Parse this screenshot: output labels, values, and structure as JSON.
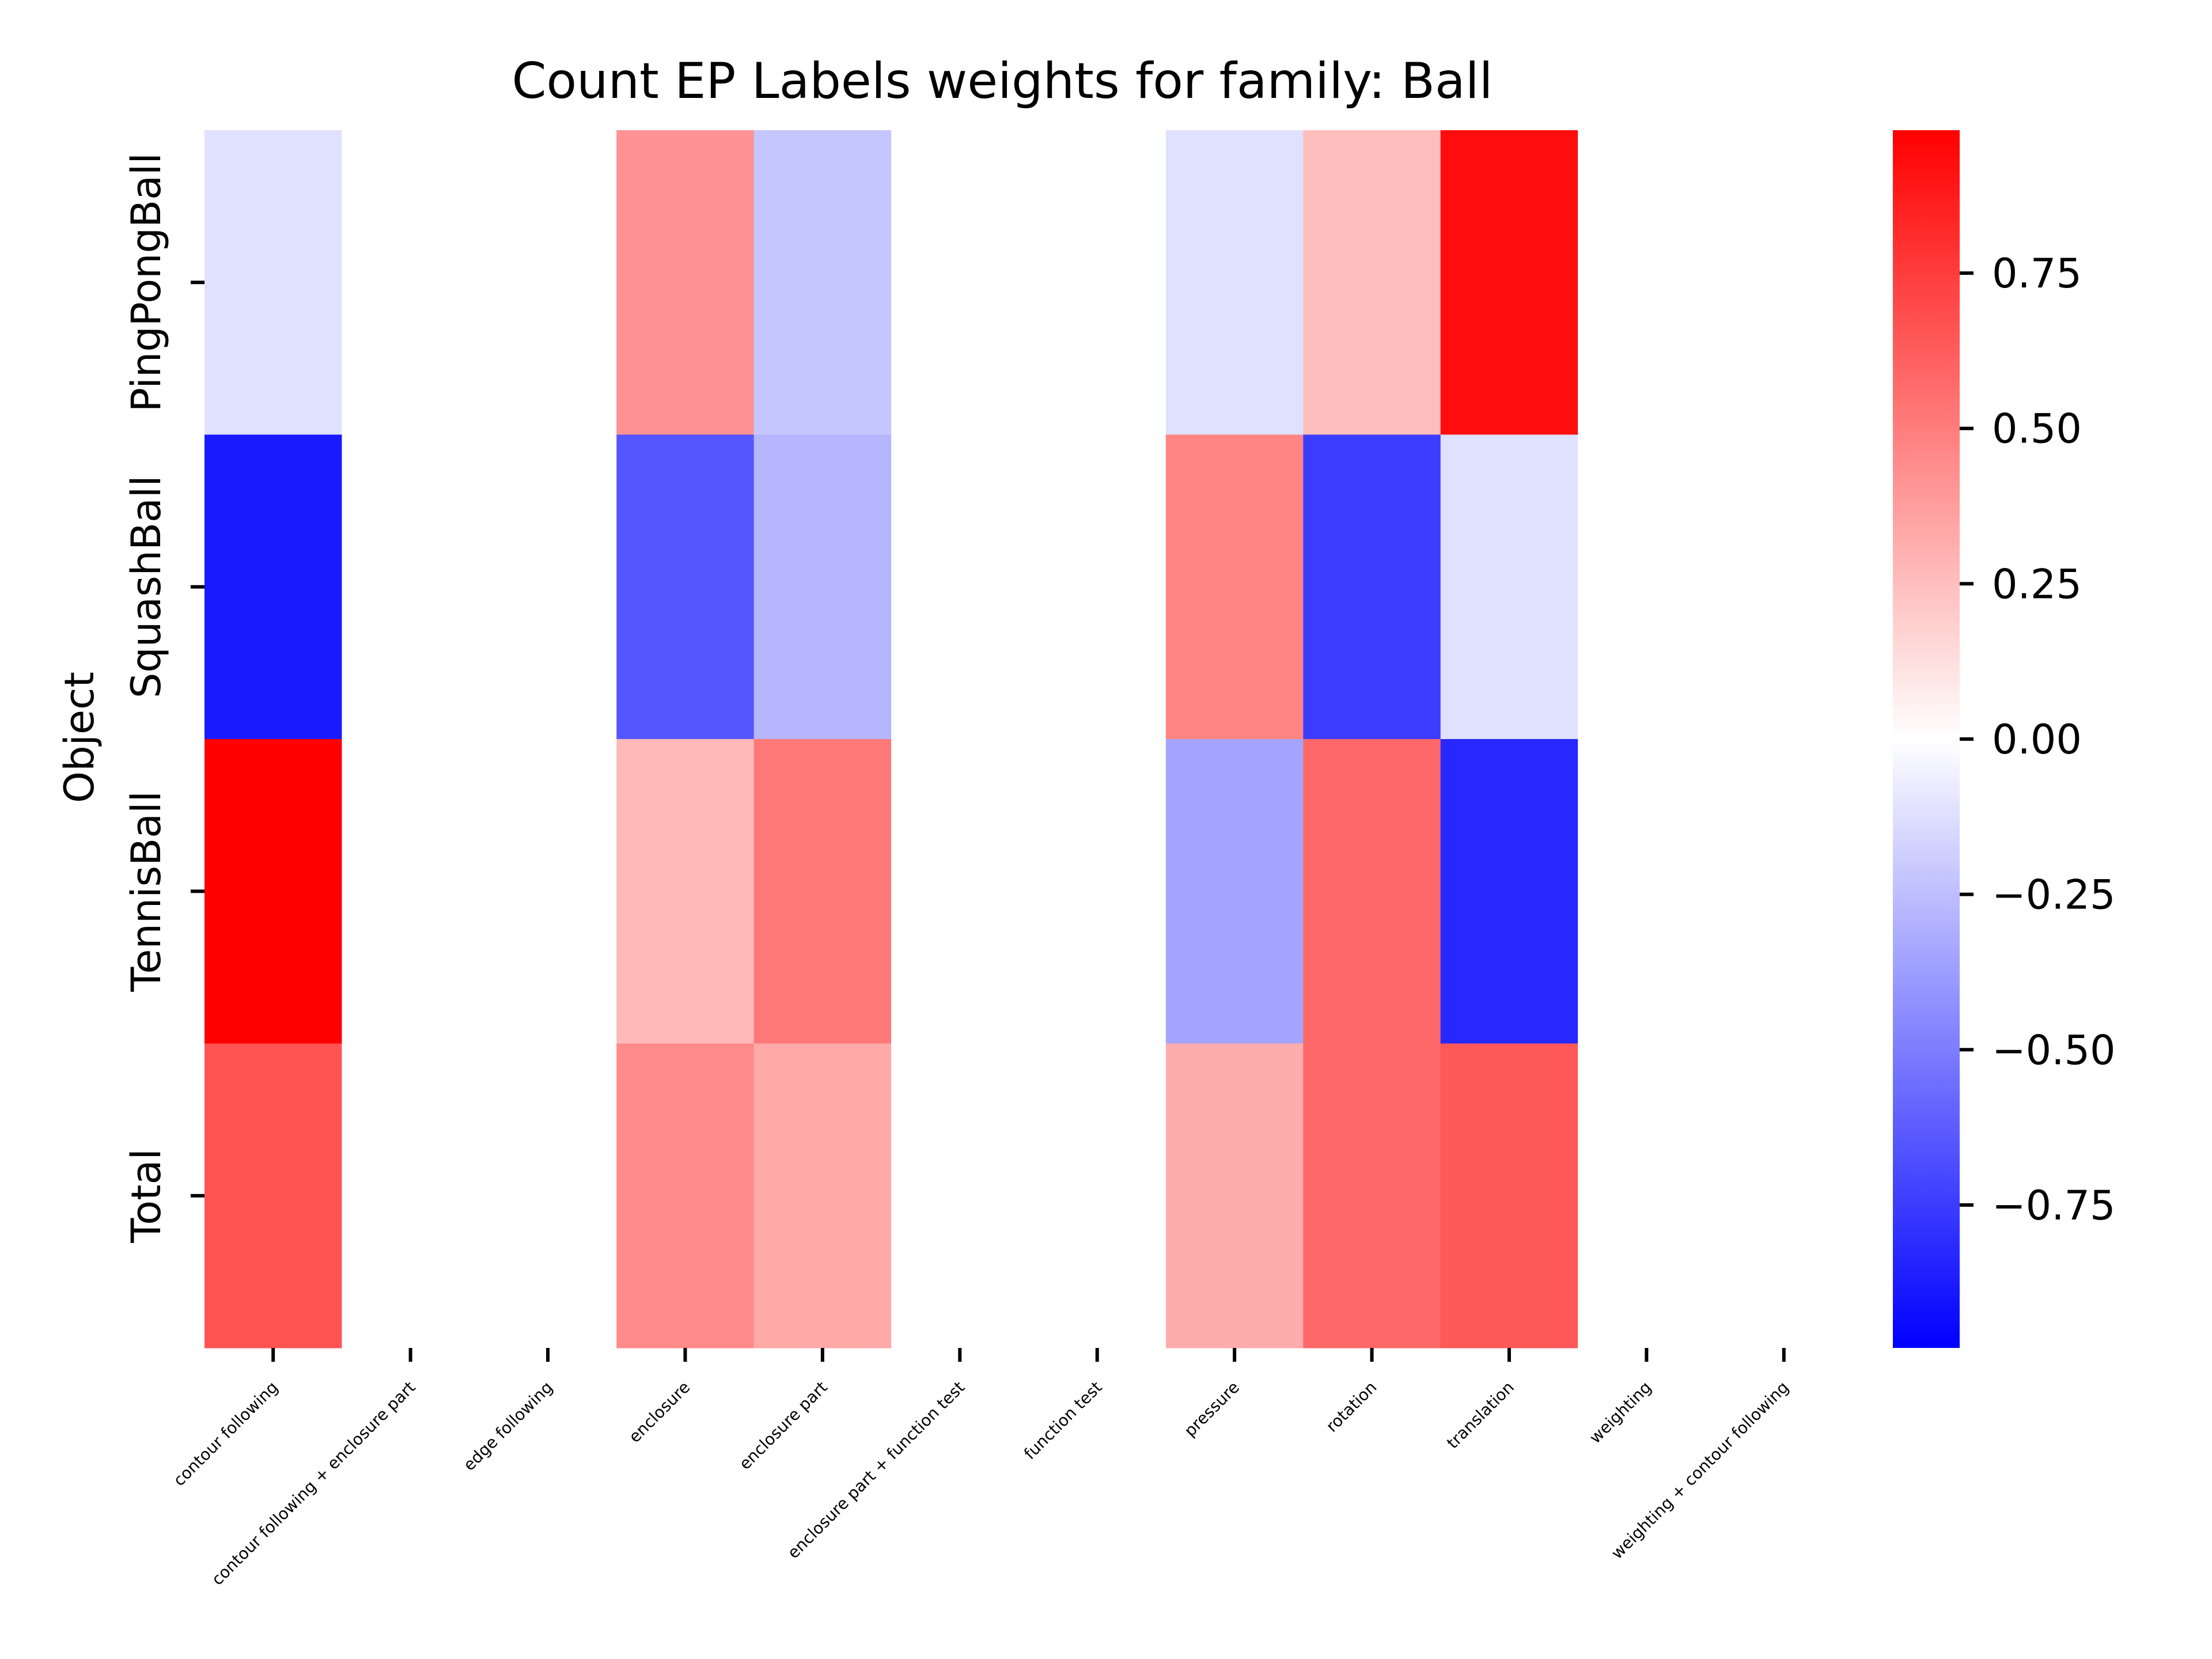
{
  "chart_data": {
    "type": "heatmap",
    "title": "Count EP Labels weights for family: Ball",
    "ylabel": "Object",
    "xlabel": "",
    "x_categories": [
      "contour following",
      "contour following + enclosure part",
      "edge following",
      "enclosure",
      "enclosure part",
      "enclosure part + function test",
      "function test",
      "pressure",
      "rotation",
      "translation",
      "weighting",
      "weighting + contour following"
    ],
    "y_categories": [
      "PingPongBall",
      "SquashBall",
      "TennisBall",
      "Total"
    ],
    "values": [
      [
        -0.12,
        0.0,
        0.0,
        0.42,
        -0.22,
        0.0,
        0.0,
        -0.12,
        0.25,
        0.93,
        0.0,
        0.0
      ],
      [
        -0.88,
        0.0,
        0.0,
        -0.65,
        -0.28,
        0.0,
        0.0,
        0.47,
        -0.75,
        -0.12,
        0.0,
        0.0
      ],
      [
        0.98,
        0.0,
        0.0,
        0.27,
        0.52,
        0.0,
        0.0,
        -0.35,
        0.58,
        -0.83,
        0.0,
        0.0
      ],
      [
        0.66,
        0.0,
        0.0,
        0.45,
        0.33,
        0.0,
        0.0,
        0.32,
        0.58,
        0.64,
        0.0,
        0.0
      ]
    ],
    "colormap": "bwr",
    "vmin": -0.98,
    "vmax": 0.98,
    "colorbar_ticks": [
      "−0.75",
      "−0.50",
      "−0.25",
      "0.00",
      "0.25",
      "0.50",
      "0.75"
    ],
    "colorbar_tick_values": [
      -0.75,
      -0.5,
      -0.25,
      0.0,
      0.25,
      0.5,
      0.75
    ],
    "grid": false,
    "legend": "colorbar-right"
  }
}
